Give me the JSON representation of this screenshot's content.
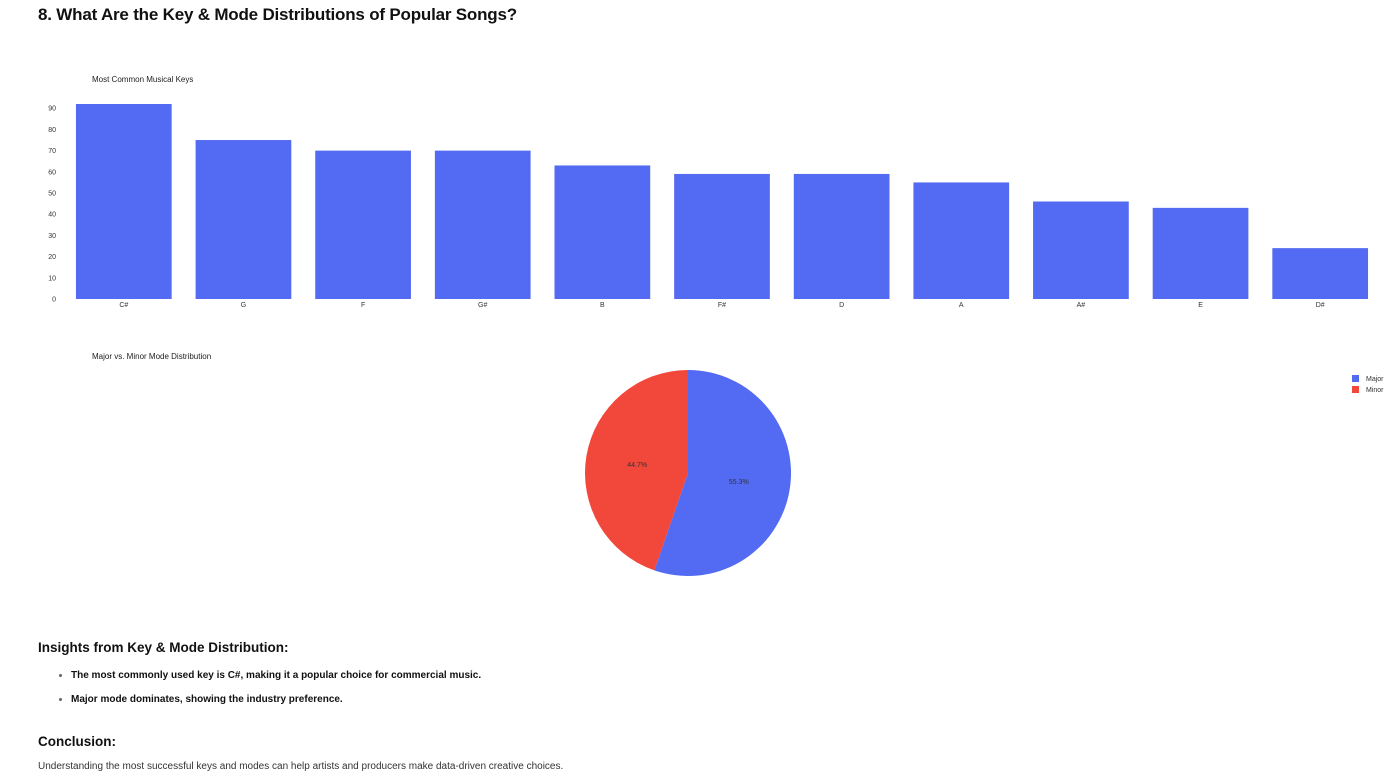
{
  "page": {
    "title": "8. What Are the Key & Mode Distributions of Popular Songs?"
  },
  "chart_data": [
    {
      "type": "bar",
      "title": "Most Common Musical Keys",
      "xlabel": "",
      "ylabel": "",
      "categories": [
        "C#",
        "G",
        "F",
        "G#",
        "B",
        "F#",
        "D",
        "A",
        "A#",
        "E",
        "D#"
      ],
      "values": [
        92,
        75,
        70,
        70,
        63,
        59,
        59,
        55,
        46,
        43,
        24
      ],
      "ylim": [
        0,
        92
      ],
      "yticks": [
        0,
        10,
        20,
        30,
        40,
        50,
        60,
        70,
        80,
        90
      ],
      "grid": false,
      "color": "#536bf2"
    },
    {
      "type": "pie",
      "title": "Major vs. Minor Mode Distribution",
      "labels": [
        "Major",
        "Minor"
      ],
      "values": [
        55.3,
        44.7
      ],
      "value_labels": [
        "55.3%",
        "44.7%"
      ],
      "colors": [
        "#536bf2",
        "#f2473b"
      ],
      "legend": "top-right"
    }
  ],
  "insights": {
    "heading": "Insights from Key & Mode Distribution:",
    "items": [
      "The most commonly used key is C#, making it a popular choice for commercial music.",
      "Major mode dominates, showing the industry preference."
    ]
  },
  "conclusion": {
    "heading": "Conclusion:",
    "text": "Understanding the most successful keys and modes can help artists and producers make data-driven creative choices."
  }
}
